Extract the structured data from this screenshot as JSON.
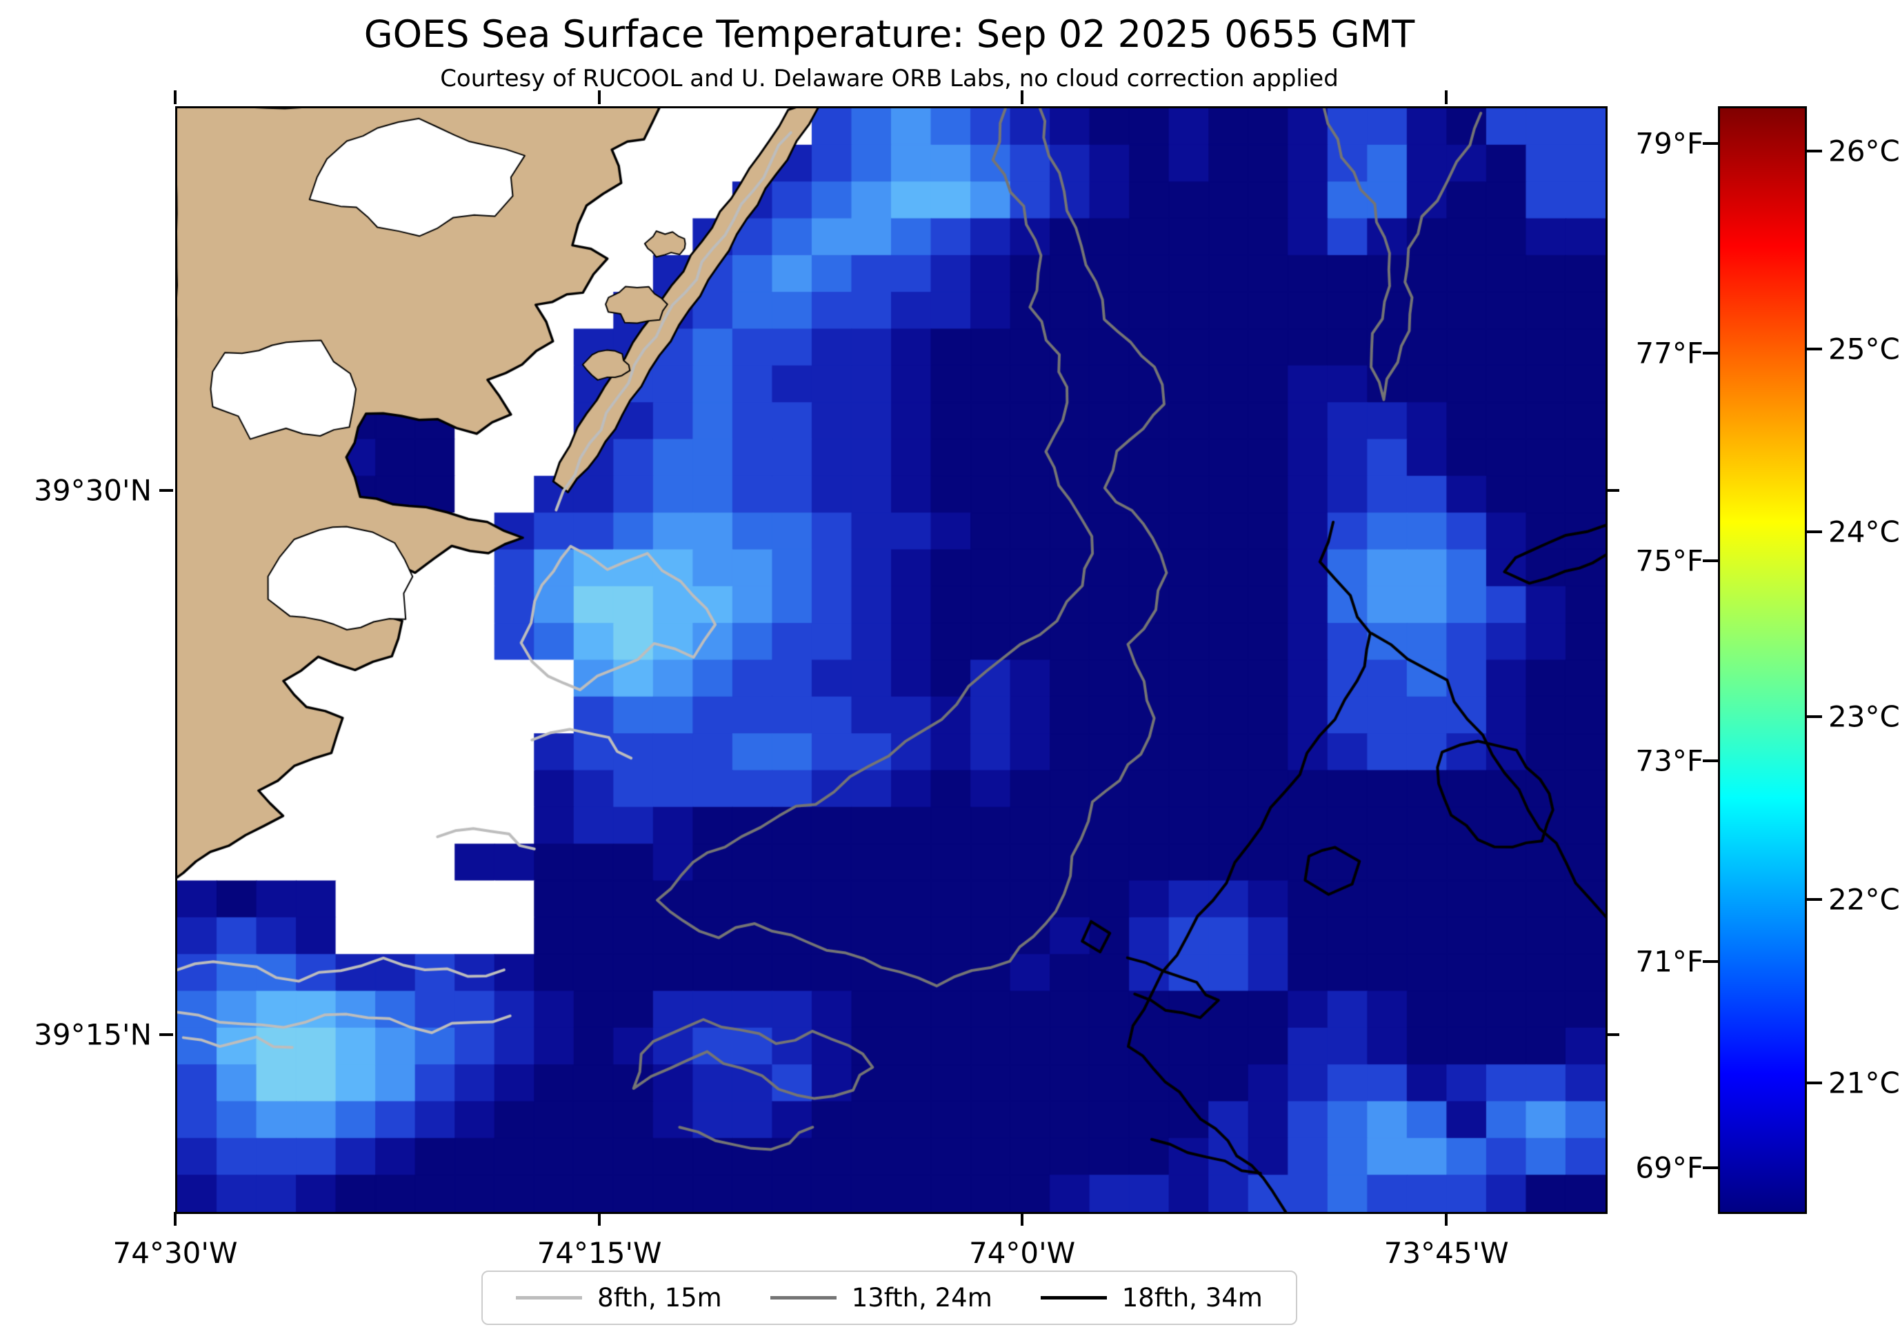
{
  "figure": {
    "title": "GOES Sea Surface Temperature: Sep 02 2025 0655 GMT",
    "subtitle": "Courtesy of RUCOOL and U. Delaware ORB Labs, no cloud correction applied",
    "background": "#ffffff"
  },
  "axes": {
    "x_ticks": [
      {
        "label": "74°30'W",
        "pos_pct": 0.0
      },
      {
        "label": "74°15'W",
        "pos_pct": 29.7
      },
      {
        "label": "74°0'W",
        "pos_pct": 59.3
      },
      {
        "label": "73°45'W",
        "pos_pct": 89.0
      }
    ],
    "y_ticks": [
      {
        "label": "39°30'N",
        "pos_pct": 34.8
      },
      {
        "label": "39°15'N",
        "pos_pct": 84.1
      }
    ]
  },
  "colorbar": {
    "colormap": "jet",
    "gradient_stops": [
      [
        "#000083",
        0
      ],
      [
        "#0000ff",
        12.5
      ],
      [
        "#00ffff",
        37.5
      ],
      [
        "#ffff00",
        62.5
      ],
      [
        "#ff0000",
        87.5
      ],
      [
        "#800000",
        100
      ]
    ],
    "f_ticks": [
      {
        "label": "79°F",
        "pct": 3.2
      },
      {
        "label": "77°F",
        "pct": 22.2
      },
      {
        "label": "75°F",
        "pct": 41.0
      },
      {
        "label": "73°F",
        "pct": 59.1
      },
      {
        "label": "71°F",
        "pct": 77.3
      },
      {
        "label": "69°F",
        "pct": 96.0
      }
    ],
    "c_ticks": [
      {
        "label": "26°C",
        "pct": 3.9
      },
      {
        "label": "25°C",
        "pct": 21.8
      },
      {
        "label": "24°C",
        "pct": 38.4
      },
      {
        "label": "23°C",
        "pct": 55.1
      },
      {
        "label": "22°C",
        "pct": 71.7
      },
      {
        "label": "21°C",
        "pct": 88.3
      }
    ]
  },
  "legend": {
    "items": [
      {
        "label": "8fth, 15m",
        "color": "#bdbdbd"
      },
      {
        "label": "13fth, 24m",
        "color": "#757575"
      },
      {
        "label": "18fth, 34m",
        "color": "#000000"
      }
    ]
  },
  "chart_data": {
    "type": "heatmap",
    "title": "GOES Sea Surface Temperature: Sep 02 2025 0655 GMT",
    "subtitle": "Courtesy of RUCOOL and U. Delaware ORB Labs, no cloud correction applied",
    "units": "°C",
    "x_tick_labels": [
      "74°30'W",
      "74°15'W",
      "74°0'W",
      "73°45'W"
    ],
    "y_tick_labels": [
      "39°30'N",
      "39°15'N"
    ],
    "colorbar_ticks_f": [
      "79°F",
      "77°F",
      "75°F",
      "73°F",
      "71°F",
      "69°F"
    ],
    "colorbar_ticks_c": [
      "26°C",
      "25°C",
      "24°C",
      "23°C",
      "22°C",
      "21°C"
    ],
    "land_color": "#d2b48c",
    "cloud_color": "#ffffff",
    "contours": [
      {
        "name": "8fth, 15m",
        "depth_m": 15,
        "color": "#bdbdbd"
      },
      {
        "name": "13fth, 24m",
        "depth_m": 24,
        "color": "#757575"
      },
      {
        "name": "18fth, 34m",
        "depth_m": 34,
        "color": "#000000"
      }
    ],
    "palette": {
      ".": {
        "temp_c": 20.8,
        "color": "#05057d"
      },
      ",": {
        "temp_c": 20.9,
        "color": "#0a0d96"
      },
      "1": {
        "temp_c": 21.1,
        "color": "#1322b5"
      },
      "2": {
        "temp_c": 21.3,
        "color": "#2244d5"
      },
      "3": {
        "temp_c": 21.6,
        "color": "#2f6ce8"
      },
      "4": {
        "temp_c": 21.8,
        "color": "#4695f5"
      },
      "5": {
        "temp_c": 22.0,
        "color": "#5cb5fa"
      },
      "6": {
        "temp_c": 22.2,
        "color": "#79cff3"
      },
      "7": {
        "temp_c": 22.4,
        "color": "#97e3ef"
      },
      "W": {
        "temp_c": null,
        "color": "#ffffff",
        "meaning": "cloud / no data"
      }
    },
    "grid_cols": 36,
    "grid_rows": [
      "WWWWWWWWWWWWWWWW234321,..,..,22,.222",
      "WWWWWWWWWWWWWWW12344321,.,..,23,,.22",
      "WWWWWWWWWWWWWW123455421,....,33,..22",
      "WWWWWWWWWWWWW12344321,......,2,...,,",
      "WWWWWWWWWWWW12343221,...............",
      "WWWWWWWWWWW112332211,...............",
      "WWWWWWWWWW11232211,.................",
      "WWWWWWWWWW12232111,.........,,......",
      "WWWW...WWW11232211,.........,11,....",
      "WWWW,..WWW12332211,.........,12,....",
      "WWWW...WW112332211,.........,122,...",
      "WWWWWWWW12234433211,........,2332,..",
      "WWWWWWWW2455544321,.........,3443,..",
      "WWWWWWWW2466554321,.........,34432,.",
      "WWWWWWWW2356543221,.........,23321,.",
      "WWWWWWWWWW45432211,.1,......,2232,..",
      "WWWWWWWWWW233222211,1,......,2222,..",
      "WWWWWWWWW1222233221,1,......,1221,..",
      "WWWWWWWWW,12222211,.,...............",
      "WWWWWWWWW,11,.......................",
      "WWWWWWW,,...,.......................",
      ",.,,WWWWW...............,11,........",
      "121,WWWWW.............,.1221........",
      "23321121,............,..1221........",
      "345543221,..1111,...........,1,.....",
      "356654321,.,1221,...........11,....,",
      "24665421,...,112,..........,122,1221",
      "2344321,....,11,..........1,2343,343",
      "12221,...................,1,23443232",
      ",11,..................,11,12232221.."
    ]
  }
}
